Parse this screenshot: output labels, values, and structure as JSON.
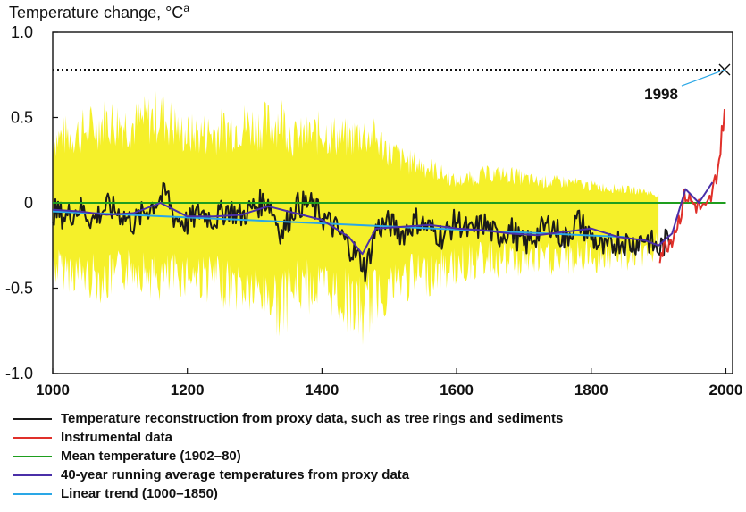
{
  "chart_data": {
    "type": "line",
    "ylabel": "Temperature change, °C",
    "ylabel_superscript": "a",
    "xlim": [
      1000,
      2010
    ],
    "ylim": [
      -1.0,
      1.0
    ],
    "x_ticks": [
      1000,
      1200,
      1400,
      1600,
      1800,
      2000
    ],
    "y_ticks": [
      {
        "value": 1.0,
        "label": "1.0"
      },
      {
        "value": 0.5,
        "label": "0.5"
      },
      {
        "value": 0.0,
        "label": "0"
      },
      {
        "value": -0.5,
        "label": "-0.5"
      },
      {
        "value": -1.0,
        "label": "-1.0"
      }
    ],
    "annotation": {
      "label": "1998",
      "x": 1998,
      "y": 0.78
    },
    "reference_line": {
      "y": 0.78,
      "style": "dotted"
    },
    "series": [
      {
        "name": "Temperature reconstruction from proxy data, such as tree rings and sediments",
        "color": "#1a1a1a",
        "x": [
          1000,
          1020,
          1040,
          1060,
          1080,
          1100,
          1120,
          1140,
          1160,
          1170,
          1180,
          1200,
          1220,
          1240,
          1260,
          1280,
          1300,
          1320,
          1340,
          1360,
          1380,
          1400,
          1420,
          1440,
          1460,
          1465,
          1480,
          1500,
          1520,
          1540,
          1560,
          1580,
          1600,
          1620,
          1640,
          1660,
          1680,
          1700,
          1720,
          1740,
          1760,
          1780,
          1800,
          1820,
          1840,
          1860,
          1880,
          1900,
          1920
        ],
        "y": [
          -0.05,
          -0.08,
          -0.03,
          -0.1,
          -0.02,
          -0.06,
          -0.12,
          -0.04,
          0.03,
          0.05,
          -0.08,
          -0.12,
          -0.05,
          -0.1,
          -0.03,
          -0.08,
          -0.02,
          0.02,
          -0.18,
          -0.02,
          0.0,
          -0.08,
          -0.15,
          -0.25,
          -0.35,
          -0.4,
          -0.15,
          -0.12,
          -0.18,
          -0.1,
          -0.15,
          -0.2,
          -0.1,
          -0.18,
          -0.12,
          -0.2,
          -0.15,
          -0.25,
          -0.18,
          -0.12,
          -0.22,
          -0.1,
          -0.2,
          -0.28,
          -0.22,
          -0.24,
          -0.2,
          -0.28,
          -0.18
        ]
      },
      {
        "name": "Instrumental data",
        "color": "#e0302a",
        "x": [
          1902,
          1910,
          1920,
          1930,
          1940,
          1950,
          1960,
          1970,
          1980,
          1990,
          1998
        ],
        "y": [
          -0.3,
          -0.25,
          -0.2,
          -0.1,
          0.05,
          0.0,
          -0.02,
          -0.05,
          0.05,
          0.25,
          0.55
        ]
      },
      {
        "name": "Mean temperature (1902–80)",
        "color": "#1e9e1e",
        "x": [
          1000,
          2000
        ],
        "y": [
          0.0,
          0.0
        ]
      },
      {
        "name": "40-year running average temperatures from proxy data",
        "color": "#4a2fa8",
        "x": [
          1000,
          1040,
          1080,
          1120,
          1160,
          1200,
          1240,
          1280,
          1320,
          1360,
          1400,
          1440,
          1460,
          1480,
          1520,
          1560,
          1600,
          1640,
          1680,
          1720,
          1760,
          1800,
          1840,
          1880,
          1900,
          1920,
          1940,
          1960,
          1980
        ],
        "y": [
          -0.04,
          -0.05,
          -0.07,
          -0.06,
          0.0,
          -0.08,
          -0.08,
          -0.07,
          -0.02,
          -0.06,
          -0.1,
          -0.2,
          -0.3,
          -0.15,
          -0.14,
          -0.13,
          -0.15,
          -0.16,
          -0.18,
          -0.19,
          -0.17,
          -0.15,
          -0.2,
          -0.22,
          -0.25,
          -0.18,
          0.08,
          0.0,
          0.12
        ]
      },
      {
        "name": "Linear trend (1000–1850)",
        "color": "#2aa7e6",
        "x": [
          1000,
          1850
        ],
        "y": [
          -0.05,
          -0.2
        ]
      }
    ],
    "uncertainty_band": {
      "color": "#f5f02a",
      "x": [
        1000,
        1040,
        1080,
        1120,
        1160,
        1200,
        1240,
        1280,
        1320,
        1340,
        1360,
        1400,
        1440,
        1460,
        1480,
        1520,
        1560,
        1600,
        1640,
        1680,
        1720,
        1760,
        1800,
        1840,
        1880,
        1900
      ],
      "lower": [
        -0.45,
        -0.5,
        -0.55,
        -0.45,
        -0.55,
        -0.5,
        -0.55,
        -0.6,
        -0.65,
        -0.75,
        -0.6,
        -0.6,
        -0.7,
        -0.8,
        -0.65,
        -0.55,
        -0.5,
        -0.45,
        -0.4,
        -0.42,
        -0.4,
        -0.4,
        -0.38,
        -0.38,
        -0.35,
        -0.3
      ],
      "upper": [
        0.45,
        0.5,
        0.58,
        0.55,
        0.62,
        0.48,
        0.5,
        0.55,
        0.55,
        0.6,
        0.45,
        0.5,
        0.45,
        0.5,
        0.45,
        0.3,
        0.25,
        0.15,
        0.2,
        0.2,
        0.15,
        0.15,
        0.12,
        0.1,
        0.08,
        0.05
      ]
    }
  },
  "legend": {
    "items": [
      {
        "label": "Temperature reconstruction from proxy data, such as tree rings and sediments",
        "color": "#1a1a1a"
      },
      {
        "label": "Instrumental data",
        "color": "#e0302a"
      },
      {
        "label": "Mean temperature (1902–80)",
        "color": "#1e9e1e"
      },
      {
        "label": "40-year running average temperatures from proxy data",
        "color": "#4a2fa8"
      },
      {
        "label": "Linear trend (1000–1850)",
        "color": "#2aa7e6"
      }
    ]
  }
}
